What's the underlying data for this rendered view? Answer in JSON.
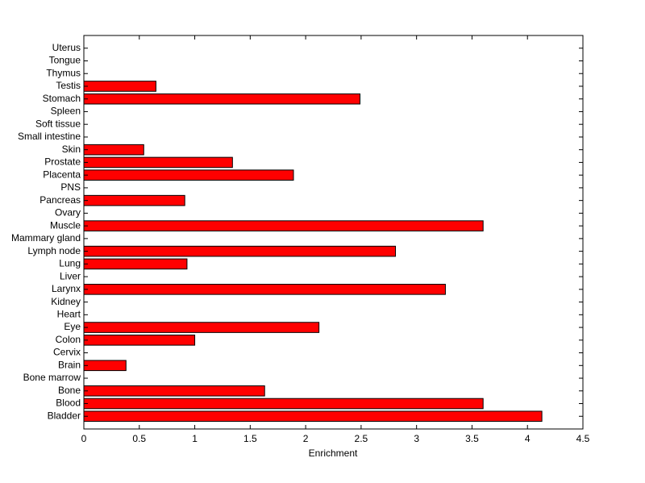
{
  "chart_data": {
    "type": "barh",
    "xlabel": "Enrichment",
    "categories": [
      "Bladder",
      "Blood",
      "Bone",
      "Bone marrow",
      "Brain",
      "Cervix",
      "Colon",
      "Eye",
      "Heart",
      "Kidney",
      "Larynx",
      "Liver",
      "Lung",
      "Lymph node",
      "Mammary gland",
      "Muscle",
      "Ovary",
      "Pancreas",
      "PNS",
      "Placenta",
      "Prostate",
      "Skin",
      "Small intestine",
      "Soft tissue",
      "Spleen",
      "Stomach",
      "Testis",
      "Thymus",
      "Tongue",
      "Uterus"
    ],
    "values": [
      4.13,
      3.6,
      1.63,
      0,
      0.38,
      0,
      1.0,
      2.12,
      0,
      0,
      3.26,
      0,
      0.93,
      2.81,
      0,
      3.6,
      0,
      0.91,
      0,
      1.89,
      1.34,
      0.54,
      0,
      0,
      0,
      2.49,
      0.65,
      0,
      0,
      0
    ],
    "color": "#ff0000",
    "xlim": [
      0,
      4.5
    ],
    "xticks": [
      0,
      0.5,
      1,
      1.5,
      2,
      2.5,
      3,
      3.5,
      4,
      4.5
    ]
  }
}
